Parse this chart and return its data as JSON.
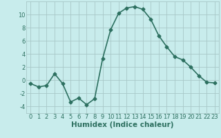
{
  "x": [
    0,
    1,
    2,
    3,
    4,
    5,
    6,
    7,
    8,
    9,
    10,
    11,
    12,
    13,
    14,
    15,
    16,
    17,
    18,
    19,
    20,
    21,
    22,
    23
  ],
  "y": [
    -0.5,
    -1.0,
    -0.8,
    1.0,
    -0.5,
    -3.3,
    -2.7,
    -3.7,
    -2.8,
    3.3,
    7.7,
    10.2,
    11.0,
    11.2,
    10.8,
    9.3,
    6.8,
    5.1,
    3.6,
    3.1,
    2.0,
    0.7,
    -0.3,
    -0.4
  ],
  "line_color": "#2d7060",
  "marker": "D",
  "marker_size": 2.5,
  "bg_color": "#c8ecec",
  "grid_color": "#a8c8c8",
  "xlabel": "Humidex (Indice chaleur)",
  "xlabel_color": "#2d7060",
  "xlim": [
    -0.5,
    23.5
  ],
  "ylim": [
    -5,
    12
  ],
  "yticks": [
    -4,
    -2,
    0,
    2,
    4,
    6,
    8,
    10
  ],
  "xtick_labels": [
    "0",
    "1",
    "2",
    "3",
    "4",
    "5",
    "6",
    "7",
    "8",
    "9",
    "10",
    "11",
    "12",
    "13",
    "14",
    "15",
    "16",
    "17",
    "18",
    "19",
    "20",
    "21",
    "22",
    "23"
  ],
  "tick_color": "#2d7060",
  "label_fontsize": 6,
  "xlabel_fontsize": 7.5,
  "linewidth": 1.2
}
